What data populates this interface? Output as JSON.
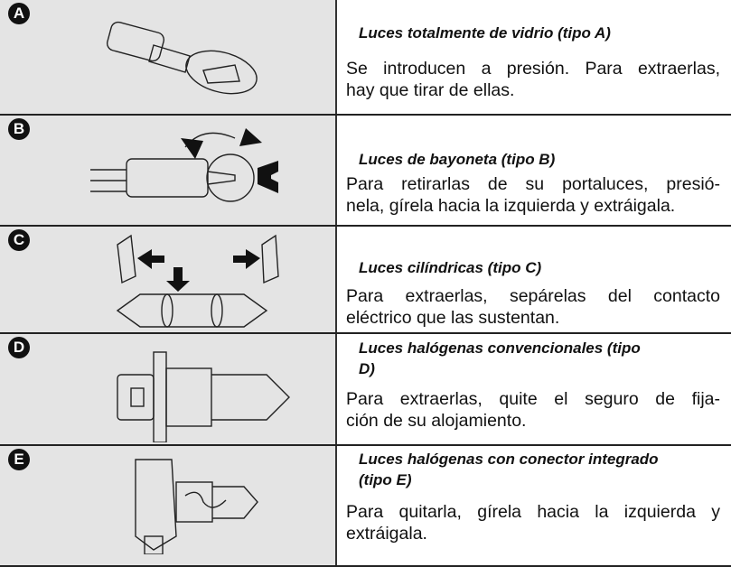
{
  "rows": [
    {
      "letter": "A",
      "title": [
        "Luces totalmente de vidrio (tipo A)"
      ],
      "body": [
        "Se introducen a presión. Para extraerlas,",
        "hay que tirar de ellas."
      ]
    },
    {
      "letter": "B",
      "title": [
        "Luces de bayoneta (tipo B)"
      ],
      "body": [
        "Para retirarlas de su portaluces, presió-",
        "nela, gírela hacia la izquierda y extráigala."
      ]
    },
    {
      "letter": "C",
      "title": [
        "Luces cilíndricas (tipo C)"
      ],
      "body": [
        "Para extraerlas, sepárelas del contacto",
        "eléctrico que las sustentan."
      ]
    },
    {
      "letter": "D",
      "title": [
        "Luces halógenas convencionales (tipo",
        "D)"
      ],
      "body": [
        "Para extraerlas, quite el seguro de fija-",
        "ción de su alojamiento."
      ]
    },
    {
      "letter": "E",
      "title": [
        "Luces halógenas con conector integrado",
        "(tipo E)"
      ],
      "body": [
        "Para quitarla, gírela hacia la izquierda y",
        "extráigala."
      ]
    }
  ]
}
